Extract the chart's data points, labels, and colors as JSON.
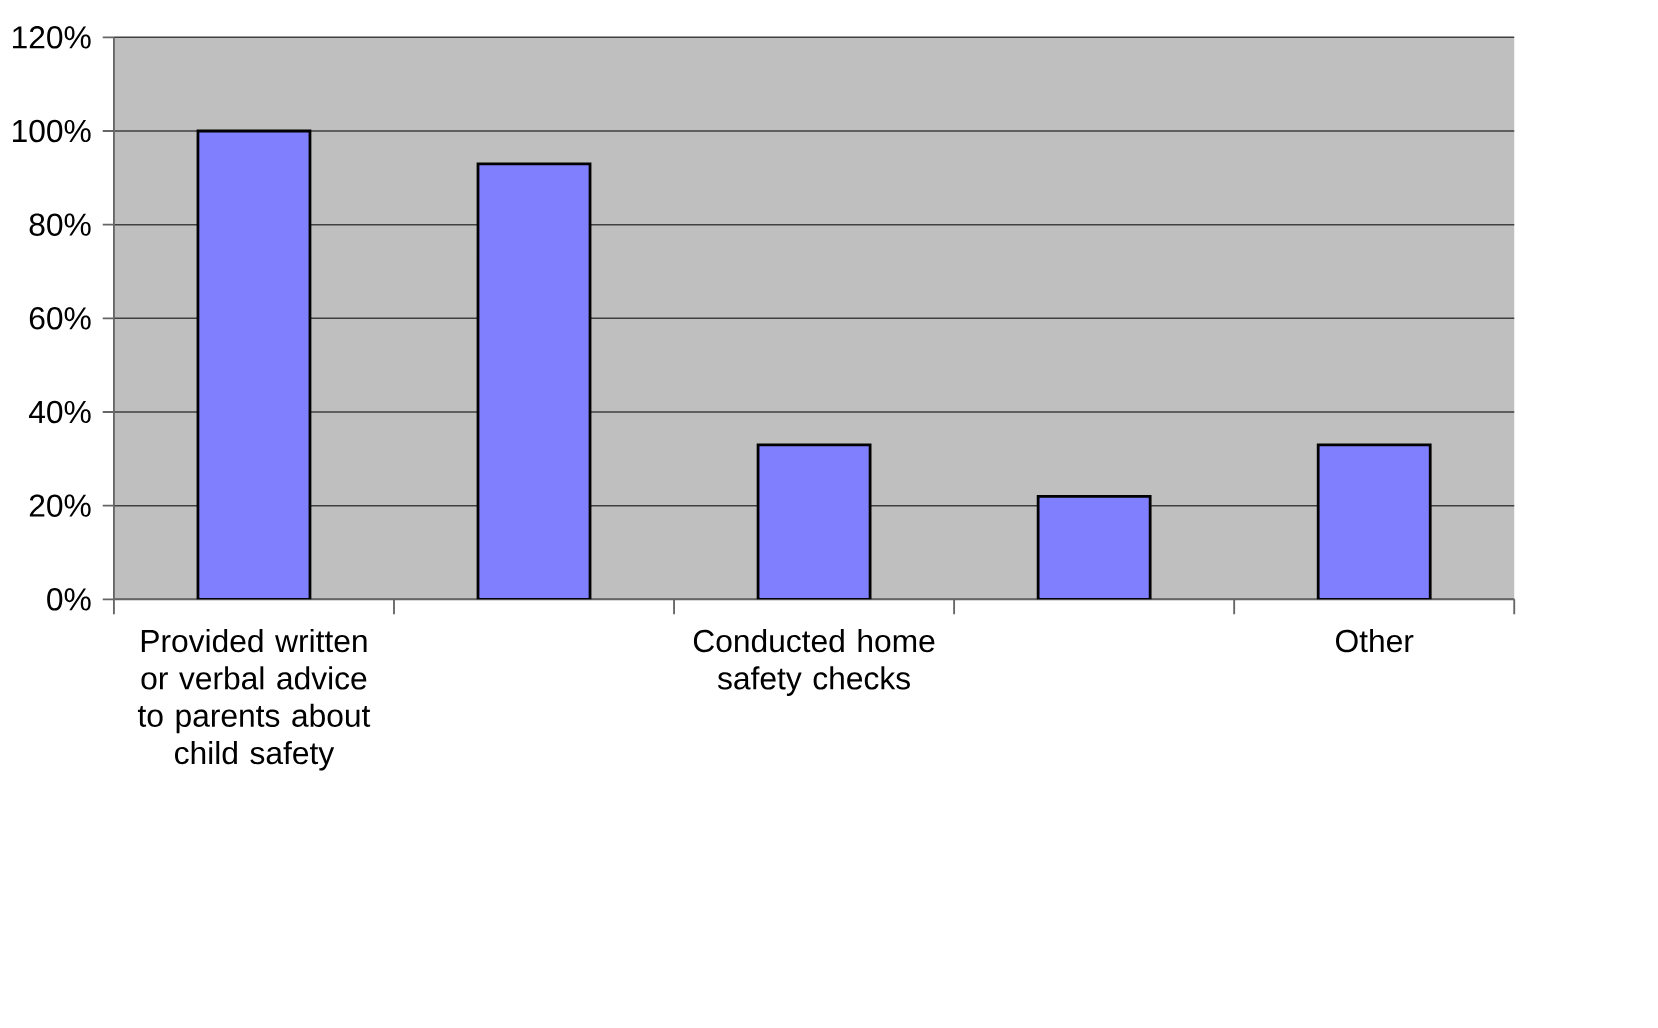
{
  "chart_data": {
    "type": "bar",
    "categories": [
      "Provided written or verbal advice to parents about child safety",
      null,
      "Conducted home safety checks",
      null,
      "Other"
    ],
    "values": [
      100,
      93,
      33,
      22,
      33
    ],
    "color": "#8080ff",
    "ylim": [
      0,
      120
    ],
    "yticks": [
      {
        "value": 0,
        "label": "0%"
      },
      {
        "value": 20,
        "label": "20%"
      },
      {
        "value": 40,
        "label": "40%"
      },
      {
        "value": 60,
        "label": "60%"
      },
      {
        "value": 80,
        "label": "80%"
      },
      {
        "value": 100,
        "label": "100%"
      },
      {
        "value": 120,
        "label": "120%"
      }
    ],
    "grid": "y"
  }
}
